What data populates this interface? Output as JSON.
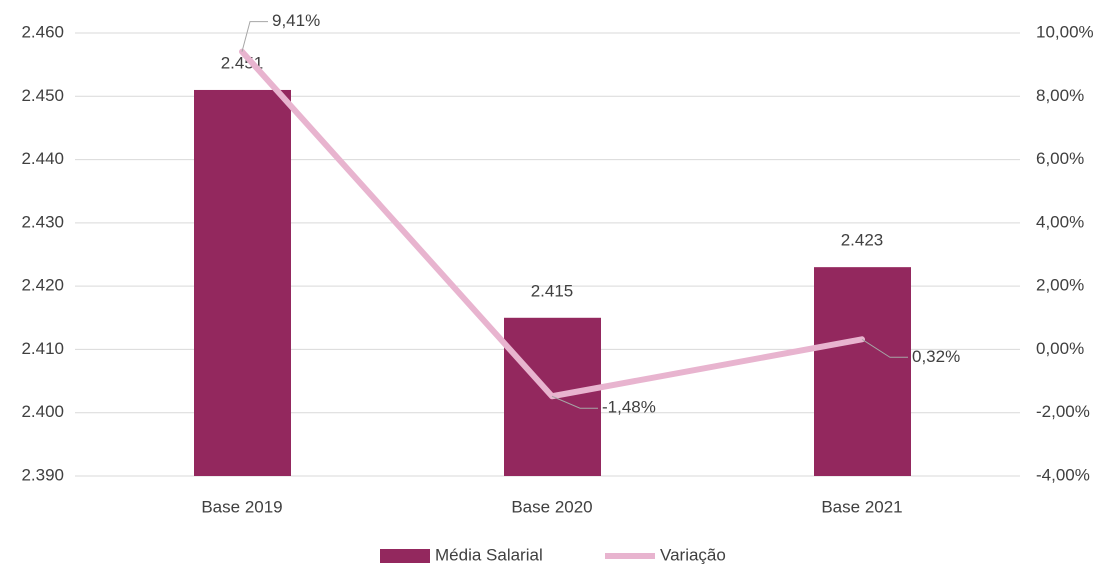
{
  "chart_data": {
    "type": "bar",
    "categories": [
      "Base 2019",
      "Base 2020",
      "Base 2021"
    ],
    "series": [
      {
        "name": "Média Salarial",
        "type": "bar",
        "color": "#93285e",
        "values": [
          2451,
          2415,
          2423
        ],
        "value_labels": [
          "2.451",
          "2.415",
          "2.423"
        ]
      },
      {
        "name": "Variação",
        "type": "line",
        "axis": "y2",
        "color": "#e8b4cf",
        "values": [
          9.41,
          -1.48,
          0.32
        ],
        "value_labels": [
          "9,41%",
          "-1,48%",
          "0,32%"
        ]
      }
    ],
    "ylim": [
      2390,
      2460
    ],
    "yticks": [
      {
        "value": 2390,
        "label": "2.390"
      },
      {
        "value": 2400,
        "label": "2.400"
      },
      {
        "value": 2410,
        "label": "2.410"
      },
      {
        "value": 2420,
        "label": "2.420"
      },
      {
        "value": 2430,
        "label": "2.430"
      },
      {
        "value": 2440,
        "label": "2.440"
      },
      {
        "value": 2450,
        "label": "2.450"
      },
      {
        "value": 2460,
        "label": "2.460"
      }
    ],
    "y2lim": [
      -4,
      10
    ],
    "y2ticks": [
      {
        "value": -4,
        "label": "-4,00%"
      },
      {
        "value": -2,
        "label": "-2,00%"
      },
      {
        "value": 0,
        "label": "0,00%"
      },
      {
        "value": 2,
        "label": "2,00%"
      },
      {
        "value": 4,
        "label": "4,00%"
      },
      {
        "value": 6,
        "label": "6,00%"
      },
      {
        "value": 8,
        "label": "8,00%"
      },
      {
        "value": 10,
        "label": "10,00%"
      }
    ],
    "grid": true,
    "legend": "bottom"
  }
}
